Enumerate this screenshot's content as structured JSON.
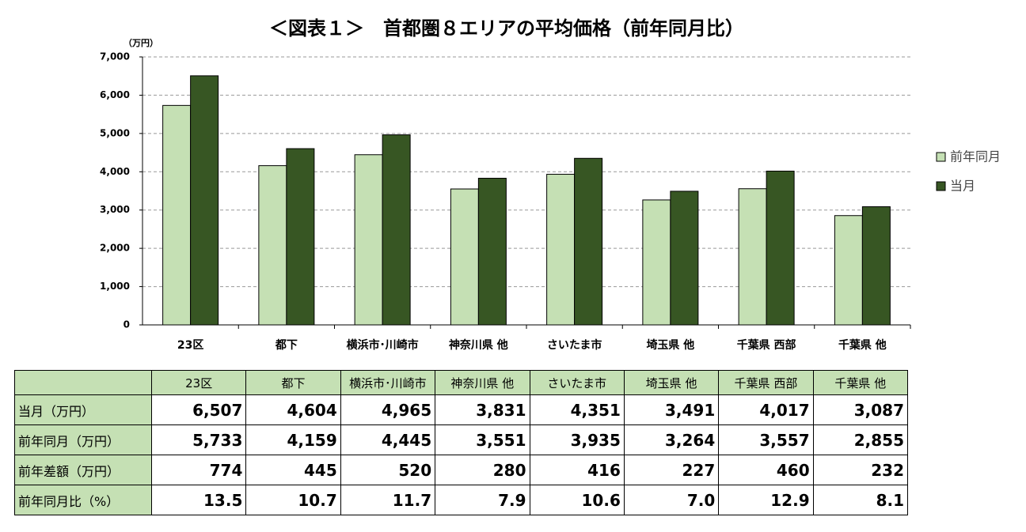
{
  "chart_data": {
    "type": "bar",
    "title": "＜図表１＞　首都圏８エリアの平均価格（前年同月比）",
    "y_unit": "（万円）",
    "categories": [
      "23区",
      "都下",
      "横浜市･川崎市",
      "神奈川県 他",
      "さいたま市",
      "埼玉県 他",
      "千葉県 西部",
      "千葉県 他"
    ],
    "series": [
      {
        "name": "前年同月",
        "color": "#c5e0b4",
        "values": [
          5733,
          4159,
          4445,
          3551,
          3935,
          3264,
          3557,
          2855
        ]
      },
      {
        "name": "当月",
        "color": "#375623",
        "values": [
          6507,
          4604,
          4965,
          3831,
          4351,
          3491,
          4017,
          3087
        ]
      }
    ],
    "ylim": [
      0,
      7000
    ],
    "yticks": [
      0,
      {
        "value": 1000,
        "label": "1,000"
      },
      {
        "value": 2000,
        "label": "2,000"
      },
      {
        "value": 3000,
        "label": "3,000"
      },
      {
        "value": 4000,
        "label": "4,000"
      },
      {
        "value": 5000,
        "label": "5,000"
      },
      {
        "value": 6000,
        "label": "6,000"
      },
      {
        "value": 7000,
        "label": "7,000"
      }
    ],
    "grid": true,
    "legend": "right"
  },
  "table": {
    "rows": [
      [
        "当月（万円）",
        "6,507",
        "4,604",
        "4,965",
        "3,831",
        "4,351",
        "3,491",
        "4,017",
        "3,087"
      ],
      [
        "前年同月（万円）",
        "5,733",
        "4,159",
        "4,445",
        "3,551",
        "3,935",
        "3,264",
        "3,557",
        "2,855"
      ],
      [
        "前年差額（万円）",
        "774",
        "445",
        "520",
        "280",
        "416",
        "227",
        "460",
        "232"
      ],
      [
        "前年同月比（%）",
        "13.5",
        "10.7",
        "11.7",
        "7.9",
        "10.6",
        "7.0",
        "12.9",
        "8.1"
      ]
    ]
  }
}
